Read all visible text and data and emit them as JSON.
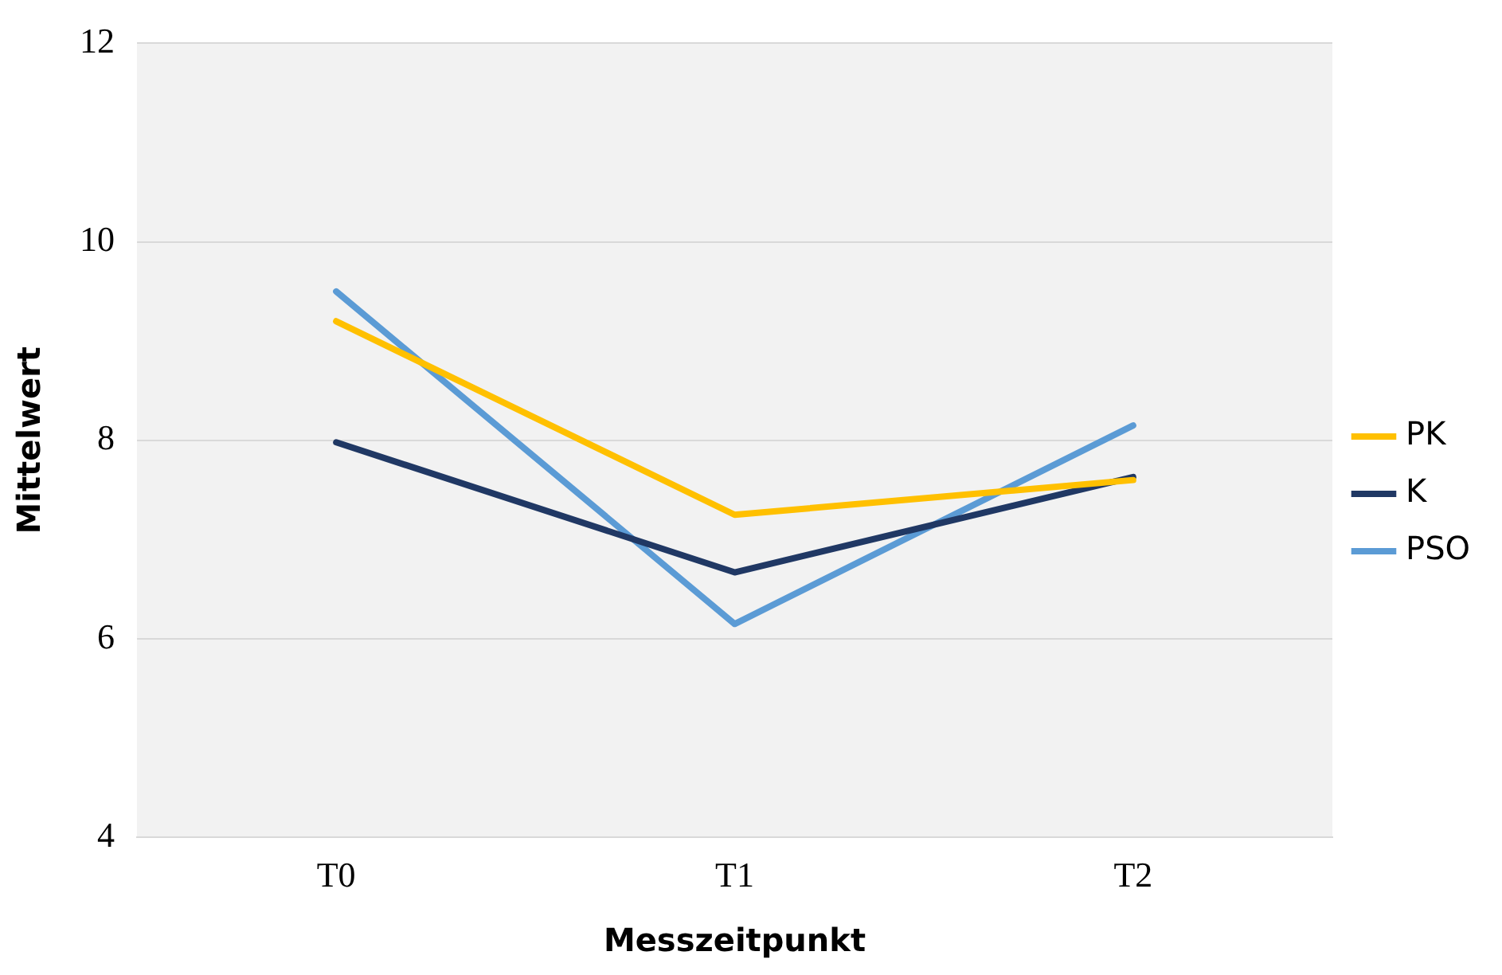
{
  "chart_data": {
    "type": "line",
    "xlabel": "Messzeitpunkt",
    "ylabel": "Mittelwert",
    "categories": [
      "T0",
      "T1",
      "T2"
    ],
    "series": [
      {
        "name": "PK",
        "color": "#ffc000",
        "values": [
          9.2,
          7.25,
          7.6
        ]
      },
      {
        "name": "K",
        "color": "#203864",
        "values": [
          7.98,
          6.67,
          7.63
        ]
      },
      {
        "name": "PSO",
        "color": "#5b9bd5",
        "values": [
          9.5,
          6.15,
          8.15
        ]
      }
    ],
    "ylim": [
      4,
      12
    ],
    "yticks": [
      4,
      6,
      8,
      10,
      12
    ],
    "grid": "y",
    "legend": "right",
    "marker": "none",
    "line_style": "solid"
  }
}
